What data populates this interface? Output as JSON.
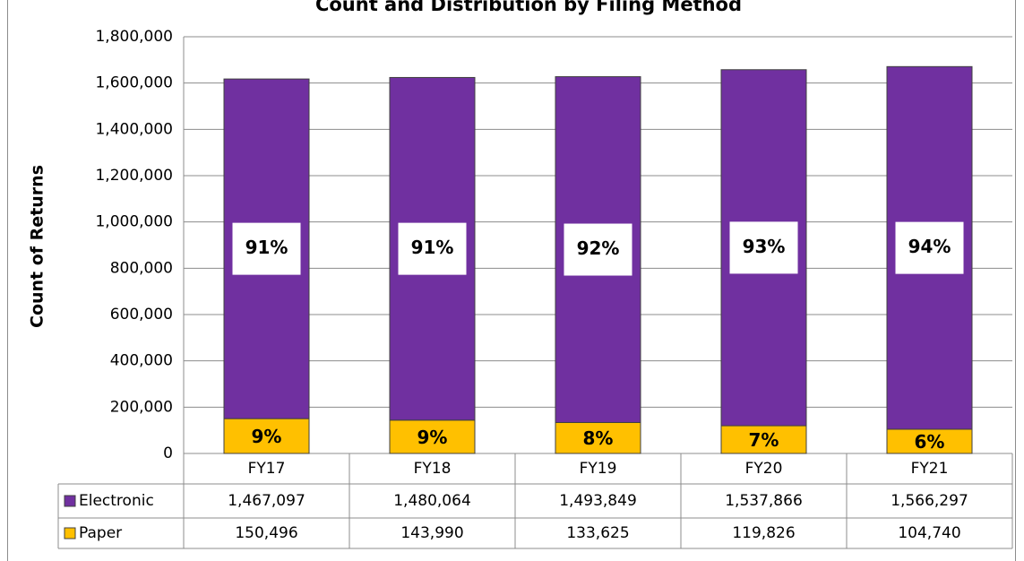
{
  "chart_data": {
    "type": "stacked_bar",
    "title": "Count and Distribution by Filing Method",
    "y_label": "Count of Returns",
    "categories": [
      "FY17",
      "FY18",
      "FY19",
      "FY20",
      "FY21"
    ],
    "series": [
      {
        "name": "Paper",
        "color": "#ffc000",
        "values": [
          150496,
          143990,
          133625,
          119826,
          104740
        ],
        "value_labels": [
          "150,496",
          "143,990",
          "133,625",
          "119,826",
          "104,740"
        ],
        "percent_labels": [
          "9%",
          "9%",
          "8%",
          "7%",
          "6%"
        ]
      },
      {
        "name": "Electronic",
        "color": "#7030a0",
        "values": [
          1467097,
          1480064,
          1493849,
          1537866,
          1566297
        ],
        "value_labels": [
          "1,467,097",
          "1,480,064",
          "1,493,849",
          "1,537,866",
          "1,566,297"
        ],
        "percent_labels": [
          "91%",
          "91%",
          "92%",
          "93%",
          "94%"
        ]
      }
    ],
    "ylim": [
      0,
      1800000
    ],
    "yticks": [
      0,
      {
        "value": 200000,
        "label": "200,000"
      },
      {
        "value": 400000,
        "label": "400,000"
      },
      {
        "value": 600000,
        "label": "600,000"
      },
      {
        "value": 800000,
        "label": "800,000"
      },
      {
        "value": 1000000,
        "label": "1,000,000"
      },
      {
        "value": 1200000,
        "label": "1,200,000"
      },
      {
        "value": 1400000,
        "label": "1,400,000"
      },
      {
        "value": 1600000,
        "label": "1,600,000"
      },
      {
        "value": 1800000,
        "label": "1,800,000"
      }
    ],
    "grid": true
  }
}
